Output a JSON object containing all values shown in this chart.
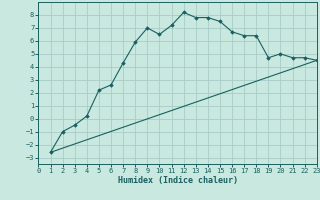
{
  "xlabel": "Humidex (Indice chaleur)",
  "ylabel": "",
  "bg_color": "#c8e8e0",
  "grid_color": "#a8ccc8",
  "line_color": "#1a6060",
  "xlim": [
    0,
    23
  ],
  "ylim": [
    -3.5,
    9
  ],
  "xticks": [
    0,
    1,
    2,
    3,
    4,
    5,
    6,
    7,
    8,
    9,
    10,
    11,
    12,
    13,
    14,
    15,
    16,
    17,
    18,
    19,
    20,
    21,
    22,
    23
  ],
  "yticks": [
    -3,
    -2,
    -1,
    0,
    1,
    2,
    3,
    4,
    5,
    6,
    7,
    8
  ],
  "curve_x": [
    1,
    2,
    3,
    4,
    5,
    6,
    7,
    8,
    9,
    10,
    11,
    12,
    13,
    14,
    15,
    16,
    17,
    18,
    19,
    20,
    21,
    22,
    23
  ],
  "curve_y": [
    -2.6,
    -1.0,
    -0.5,
    0.2,
    2.2,
    2.6,
    4.3,
    5.9,
    7.0,
    6.5,
    7.2,
    8.2,
    7.8,
    7.8,
    7.5,
    6.7,
    6.4,
    6.4,
    4.7,
    5.0,
    4.7,
    4.7,
    4.5
  ],
  "line_x": [
    1,
    23
  ],
  "line_y": [
    -2.6,
    4.5
  ]
}
